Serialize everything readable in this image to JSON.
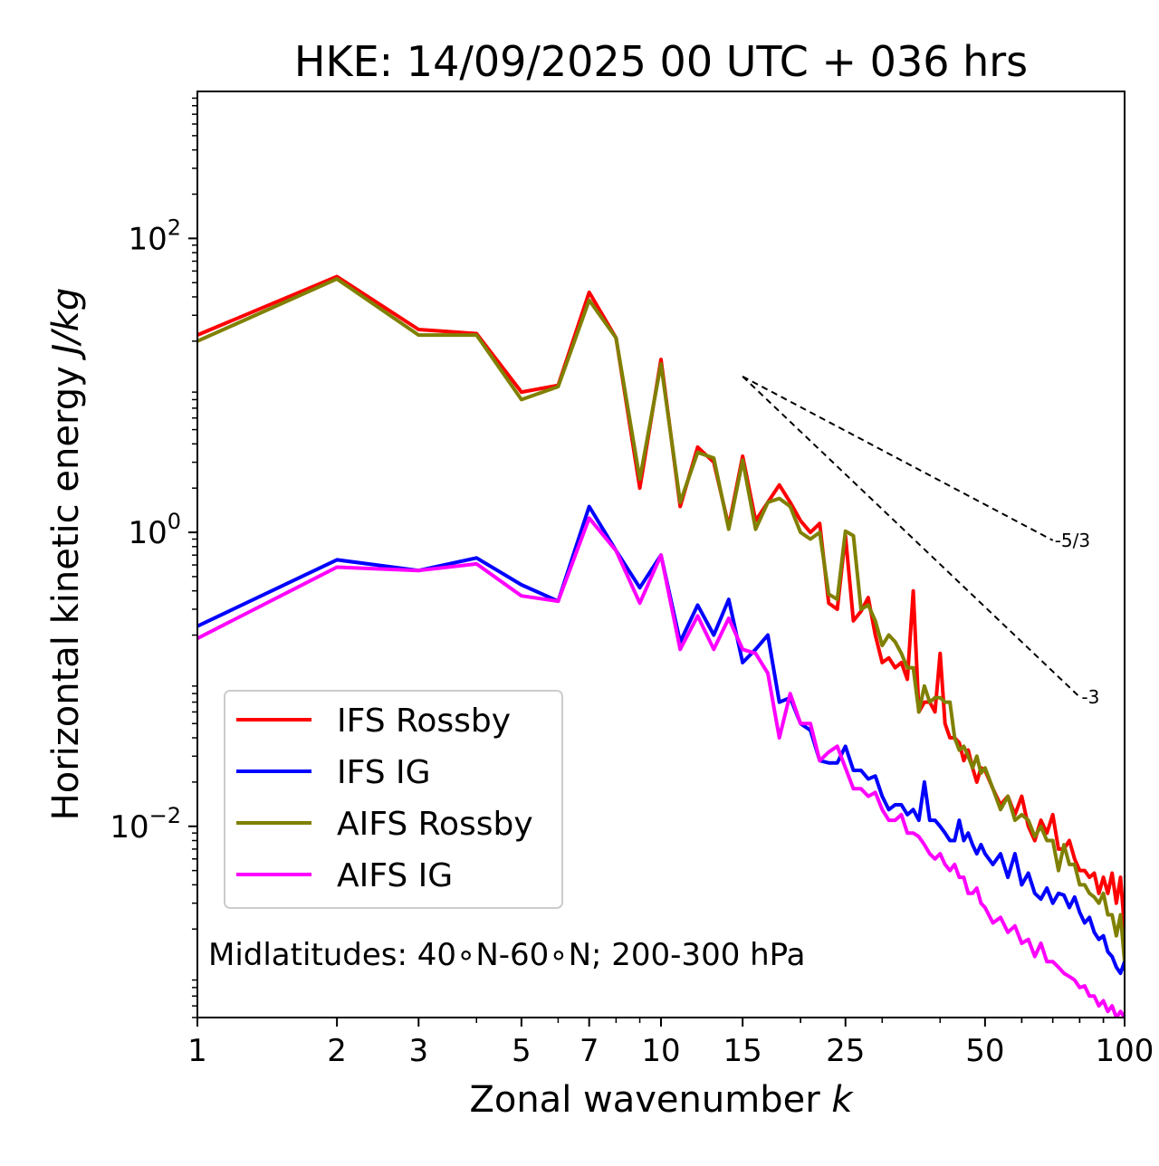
{
  "chart_data": {
    "type": "line",
    "title": "HKE: 14/09/2025 00 UTC + 036 hrs",
    "xlabel": "Zonal wavenumber",
    "xlabel_var": "k",
    "ylabel": "Horizontal kinetic energy",
    "ylabel_unit": "J/kg",
    "xscale": "log",
    "yscale": "log",
    "xlim": [
      1,
      100
    ],
    "ylim": [
      0.0005,
      1000
    ],
    "x_ticks": [
      1,
      2,
      3,
      5,
      7,
      10,
      15,
      25,
      50,
      100
    ],
    "x_tick_labels": [
      "1",
      "2",
      "3",
      "5",
      "7",
      "10",
      "15",
      "25",
      "50",
      "100"
    ],
    "y_ticks": [
      {
        "value": 0.01,
        "base": "10",
        "exp": "−2"
      },
      {
        "value": 1,
        "base": "10",
        "exp": "0"
      },
      {
        "value": 100,
        "base": "10",
        "exp": "2"
      }
    ],
    "annotation": "Midlatitudes: 40∘N-60∘N; 200-300 hPa",
    "legend_position": "lower-left",
    "reference_slopes": [
      {
        "label": "-5/3",
        "exponent": -1.6667,
        "x_start": 15,
        "x_end": 70,
        "y_start": 11.5
      },
      {
        "label": "-3",
        "exponent": -3,
        "x_start": 15,
        "x_end": 80,
        "y_start": 11.5
      }
    ],
    "series": [
      {
        "name": "IFS Rossby",
        "color": "#ff0000",
        "x": [
          1,
          2,
          3,
          4,
          5,
          6,
          7,
          8,
          9,
          10,
          11,
          12,
          13,
          14,
          15,
          16,
          17,
          18,
          19,
          20,
          21,
          22,
          23,
          24,
          25,
          26,
          27,
          28,
          29,
          30,
          31,
          32,
          33,
          34,
          35,
          36,
          37,
          38,
          39,
          40,
          41,
          42,
          43,
          44,
          45,
          46,
          47,
          48,
          49,
          50,
          52,
          54,
          56,
          58,
          60,
          62,
          64,
          66,
          68,
          70,
          72,
          74,
          76,
          78,
          80,
          82,
          84,
          86,
          88,
          90,
          92,
          94,
          96,
          98,
          100
        ],
        "values": [
          22,
          55,
          24,
          22.5,
          9,
          10,
          43,
          21,
          2,
          15,
          1.5,
          3.8,
          3,
          1.1,
          3.3,
          1.2,
          1.6,
          2.1,
          1.6,
          1.2,
          1.0,
          1.15,
          0.33,
          0.3,
          0.95,
          0.25,
          0.29,
          0.36,
          0.2,
          0.13,
          0.14,
          0.12,
          0.13,
          0.1,
          0.4,
          0.06,
          0.07,
          0.07,
          0.06,
          0.15,
          0.05,
          0.04,
          0.04,
          0.037,
          0.028,
          0.033,
          0.025,
          0.02,
          0.025,
          0.024,
          0.018,
          0.014,
          0.016,
          0.012,
          0.016,
          0.01,
          0.008,
          0.011,
          0.009,
          0.012,
          0.007,
          0.007,
          0.008,
          0.006,
          0.005,
          0.005,
          0.0045,
          0.0048,
          0.0035,
          0.0045,
          0.0035,
          0.0048,
          0.003,
          0.0045,
          0.002
        ]
      },
      {
        "name": "IFS IG",
        "color": "#0000ff",
        "x": [
          1,
          2,
          3,
          4,
          5,
          6,
          7,
          8,
          9,
          10,
          11,
          12,
          13,
          14,
          15,
          16,
          17,
          18,
          19,
          20,
          21,
          22,
          23,
          24,
          25,
          26,
          27,
          28,
          29,
          30,
          31,
          32,
          33,
          34,
          35,
          36,
          37,
          38,
          39,
          40,
          41,
          42,
          43,
          44,
          45,
          46,
          47,
          48,
          49,
          50,
          52,
          54,
          56,
          58,
          60,
          62,
          64,
          66,
          68,
          70,
          72,
          74,
          76,
          78,
          80,
          82,
          84,
          86,
          88,
          90,
          92,
          94,
          96,
          98,
          100
        ],
        "values": [
          0.23,
          0.65,
          0.55,
          0.67,
          0.44,
          0.34,
          1.5,
          0.75,
          0.42,
          0.7,
          0.18,
          0.32,
          0.2,
          0.35,
          0.13,
          0.16,
          0.2,
          0.07,
          0.075,
          0.05,
          0.045,
          0.028,
          0.027,
          0.027,
          0.035,
          0.024,
          0.024,
          0.021,
          0.022,
          0.016,
          0.013,
          0.014,
          0.014,
          0.012,
          0.013,
          0.011,
          0.02,
          0.011,
          0.011,
          0.01,
          0.009,
          0.008,
          0.008,
          0.011,
          0.008,
          0.009,
          0.0075,
          0.0065,
          0.0075,
          0.0065,
          0.0055,
          0.0065,
          0.0045,
          0.0065,
          0.004,
          0.0048,
          0.0035,
          0.0032,
          0.0038,
          0.003,
          0.0035,
          0.0034,
          0.0028,
          0.0033,
          0.0026,
          0.0022,
          0.0024,
          0.0019,
          0.0017,
          0.0018,
          0.0014,
          0.0013,
          0.0011,
          0.001,
          0.0012
        ]
      },
      {
        "name": "AIFS Rossby",
        "color": "#808000",
        "x": [
          1,
          2,
          3,
          4,
          5,
          6,
          7,
          8,
          9,
          10,
          11,
          12,
          13,
          14,
          15,
          16,
          17,
          18,
          19,
          20,
          21,
          22,
          23,
          24,
          25,
          26,
          27,
          28,
          29,
          30,
          31,
          32,
          33,
          34,
          35,
          36,
          37,
          38,
          39,
          40,
          41,
          42,
          43,
          44,
          45,
          46,
          47,
          48,
          49,
          50,
          52,
          54,
          56,
          58,
          60,
          62,
          64,
          66,
          68,
          70,
          72,
          74,
          76,
          78,
          80,
          82,
          84,
          86,
          88,
          90,
          92,
          94,
          96,
          98,
          100
        ],
        "values": [
          20,
          53,
          22,
          22,
          8,
          9.8,
          38,
          21,
          2.3,
          14,
          1.6,
          3.5,
          3.2,
          1.05,
          3.1,
          1.05,
          1.6,
          1.7,
          1.5,
          1.0,
          0.9,
          1.0,
          0.38,
          0.35,
          1.02,
          0.95,
          0.3,
          0.32,
          0.25,
          0.17,
          0.2,
          0.18,
          0.15,
          0.12,
          0.12,
          0.06,
          0.09,
          0.07,
          0.075,
          0.075,
          0.07,
          0.07,
          0.04,
          0.033,
          0.035,
          0.03,
          0.025,
          0.03,
          0.023,
          0.025,
          0.018,
          0.013,
          0.016,
          0.011,
          0.012,
          0.011,
          0.0085,
          0.01,
          0.008,
          0.008,
          0.005,
          0.0075,
          0.0055,
          0.0055,
          0.004,
          0.004,
          0.0035,
          0.0033,
          0.003,
          0.0035,
          0.0025,
          0.0025,
          0.0018,
          0.0025,
          0.0012
        ]
      },
      {
        "name": "AIFS IG",
        "color": "#ff00ff",
        "x": [
          1,
          2,
          3,
          4,
          5,
          6,
          7,
          8,
          9,
          10,
          11,
          12,
          13,
          14,
          15,
          16,
          17,
          18,
          19,
          20,
          21,
          22,
          23,
          24,
          25,
          26,
          27,
          28,
          29,
          30,
          31,
          32,
          33,
          34,
          35,
          36,
          37,
          38,
          39,
          40,
          41,
          42,
          43,
          44,
          45,
          46,
          47,
          48,
          49,
          50,
          52,
          54,
          56,
          58,
          60,
          62,
          64,
          66,
          68,
          70,
          72,
          74,
          76,
          78,
          80,
          82,
          84,
          86,
          88,
          90,
          92,
          94,
          96,
          98,
          100
        ],
        "values": [
          0.19,
          0.58,
          0.55,
          0.61,
          0.37,
          0.34,
          1.25,
          0.75,
          0.33,
          0.7,
          0.16,
          0.27,
          0.16,
          0.26,
          0.16,
          0.15,
          0.11,
          0.04,
          0.08,
          0.05,
          0.05,
          0.028,
          0.032,
          0.035,
          0.025,
          0.018,
          0.018,
          0.016,
          0.017,
          0.013,
          0.011,
          0.011,
          0.012,
          0.009,
          0.009,
          0.0085,
          0.0075,
          0.0065,
          0.006,
          0.0065,
          0.0055,
          0.005,
          0.0055,
          0.0045,
          0.0045,
          0.0035,
          0.0035,
          0.0038,
          0.003,
          0.0028,
          0.0022,
          0.0024,
          0.0019,
          0.0021,
          0.0016,
          0.0017,
          0.0013,
          0.0016,
          0.0012,
          0.0012,
          0.0011,
          0.001,
          0.00095,
          0.0009,
          0.0008,
          0.00082,
          0.0007,
          0.0007,
          0.0006,
          0.00065,
          0.00055,
          0.0006,
          0.0005,
          0.00055,
          0.0005
        ]
      }
    ]
  }
}
